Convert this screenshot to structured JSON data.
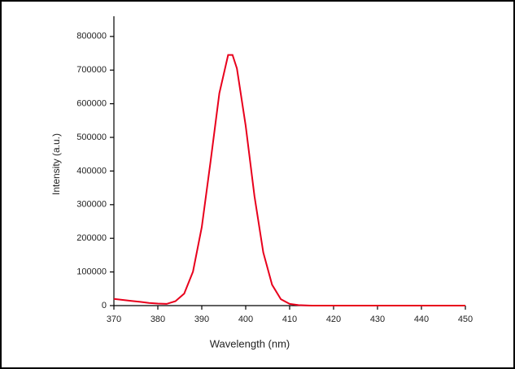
{
  "chart_data": {
    "type": "line",
    "x_label": "Wavelength (nm)",
    "y_label": "Intensity (a.u.)",
    "x": [
      370,
      372,
      374,
      376,
      378,
      380,
      382,
      384,
      386,
      388,
      390,
      392,
      394,
      396,
      397,
      398,
      400,
      402,
      404,
      406,
      408,
      410,
      412,
      415,
      420,
      430,
      440,
      450
    ],
    "series": [
      {
        "name": "Intensity",
        "color": "#e8001c",
        "values": [
          20000,
          17000,
          14000,
          11000,
          8000,
          6000,
          5000,
          13000,
          35500,
          101000,
          233000,
          428000,
          631000,
          745000,
          745000,
          705000,
          534000,
          325000,
          158000,
          62000,
          19000,
          5000,
          1500,
          0,
          0,
          0,
          0,
          0
        ]
      }
    ],
    "xlim": [
      370,
      450
    ],
    "xticks": [
      370,
      380,
      390,
      400,
      410,
      420,
      430,
      440,
      450
    ],
    "ylim": [
      0,
      860000
    ],
    "yticks": [
      0,
      100000,
      200000,
      300000,
      400000,
      500000,
      600000,
      700000,
      800000
    ],
    "grid": false
  }
}
